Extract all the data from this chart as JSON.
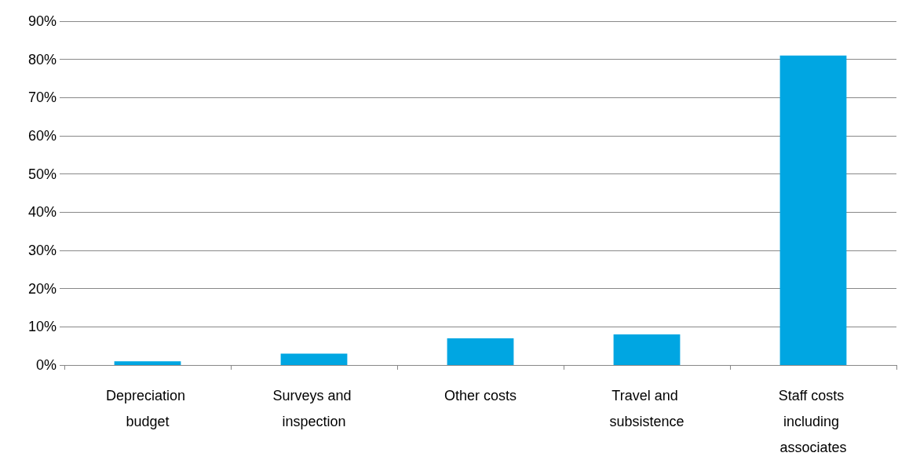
{
  "chart_data": {
    "type": "bar",
    "categories": [
      "Depreciation budget",
      "Surveys and inspection",
      "Other costs",
      "Travel and subsistence",
      "Staff costs including associates"
    ],
    "values": [
      1,
      3,
      7,
      8,
      81
    ],
    "color": "#00a6e2",
    "ylim": [
      0,
      90
    ],
    "yticks": [
      {
        "value": 0,
        "label": "0%"
      },
      {
        "value": 10,
        "label": "10%"
      },
      {
        "value": 20,
        "label": "20%"
      },
      {
        "value": 30,
        "label": "30%"
      },
      {
        "value": 40,
        "label": "40%"
      },
      {
        "value": 50,
        "label": "50%"
      },
      {
        "value": 60,
        "label": "60%"
      },
      {
        "value": 70,
        "label": "70%"
      },
      {
        "value": 80,
        "label": "80%"
      },
      {
        "value": 90,
        "label": "90%"
      }
    ],
    "grid": "y"
  }
}
